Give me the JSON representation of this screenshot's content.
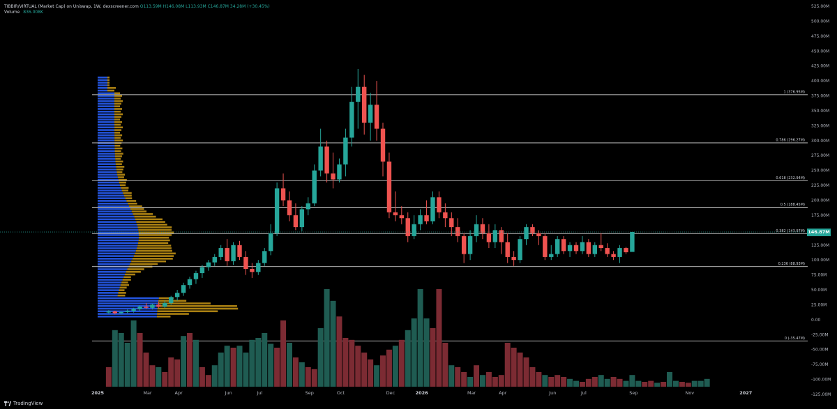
{
  "legend": {
    "symbol": "TIBBIR/VIRTUAL (Market Cap) on Uniswap, 1W, dexscreener.com",
    "open": "O113.59M",
    "high": "H146.08M",
    "low": "L113.93M",
    "close": "C146.87M",
    "change": "34.28M (+30.45%)"
  },
  "volume": {
    "label": "Volume",
    "value": "836.008K"
  },
  "brand": "TradingView",
  "last_price_label": "146.87M",
  "colors": {
    "background": "#000000",
    "up": "#26a69a",
    "down": "#ef5350",
    "vol_up": "#1f5c52",
    "vol_down": "#7c2b33",
    "vp_blue": "#2962ff",
    "vp_orange": "#d4a017",
    "fib_line": "#c7c7c7",
    "text": "#b2b5be"
  },
  "chart_data": {
    "type": "candlestick",
    "y_axis_ticks": [
      "525.00M",
      "500.00M",
      "475.00M",
      "450.00M",
      "425.00M",
      "400.00M",
      "375.00M",
      "350.00M",
      "325.00M",
      "300.00M",
      "275.00M",
      "250.00M",
      "225.00M",
      "200.00M",
      "175.00M",
      "150.00M",
      "125.00M",
      "100.00M",
      "75.00M",
      "50.00M",
      "25.00M",
      "0.00",
      "-25.00M",
      "-50.00M",
      "-75.00M",
      "-100.00M",
      "-125.00M"
    ],
    "y_axis_values": [
      525,
      500,
      475,
      450,
      425,
      400,
      375,
      350,
      325,
      300,
      275,
      250,
      225,
      200,
      175,
      150,
      125,
      100,
      75,
      50,
      25,
      0,
      -25,
      -50,
      -75,
      -100,
      -125
    ],
    "ylim": [
      -145,
      530
    ],
    "x_axis_ticks": [
      "2025",
      "Mar",
      "Apr",
      "Jun",
      "Jul",
      "Sep",
      "Oct",
      "Dec",
      "2026",
      "Mar",
      "Apr",
      "Jun",
      "Jul",
      "Sep",
      "Nov",
      "2027"
    ],
    "x_axis_weeks": [
      0,
      8,
      13,
      21,
      26,
      34,
      39,
      47,
      52,
      60,
      65,
      73,
      78,
      86,
      95,
      104
    ],
    "fib_levels": [
      {
        "label": "1 (376.95M)",
        "value": 376.95
      },
      {
        "label": "0.786 (296.27M)",
        "value": 296.27
      },
      {
        "label": "0.618 (232.94M)",
        "value": 232.94
      },
      {
        "label": "0.5 (188.45M)",
        "value": 188.45
      },
      {
        "label": "0.382 (143.97M)",
        "value": 143.97
      },
      {
        "label": "0.236 (88.93M)",
        "value": 88.93
      },
      {
        "label": "0 (-35.47M)",
        "value": -35.47
      }
    ],
    "candles": [
      [
        2,
        12,
        16,
        10,
        14
      ],
      [
        3,
        14,
        15,
        9,
        11
      ],
      [
        4,
        11,
        14,
        9,
        13
      ],
      [
        5,
        13,
        17,
        11,
        15
      ],
      [
        6,
        15,
        20,
        12,
        18
      ],
      [
        7,
        18,
        24,
        15,
        22
      ],
      [
        8,
        22,
        28,
        18,
        20
      ],
      [
        9,
        20,
        27,
        17,
        25
      ],
      [
        10,
        25,
        30,
        20,
        22
      ],
      [
        11,
        22,
        32,
        20,
        28
      ],
      [
        12,
        28,
        40,
        25,
        38
      ],
      [
        13,
        38,
        50,
        32,
        45
      ],
      [
        14,
        45,
        62,
        40,
        58
      ],
      [
        15,
        58,
        72,
        52,
        68
      ],
      [
        16,
        68,
        82,
        60,
        78
      ],
      [
        17,
        78,
        92,
        70,
        88
      ],
      [
        18,
        88,
        100,
        82,
        96
      ],
      [
        19,
        96,
        110,
        90,
        105
      ],
      [
        20,
        105,
        125,
        100,
        120
      ],
      [
        21,
        120,
        135,
        90,
        98
      ],
      [
        22,
        98,
        130,
        92,
        125
      ],
      [
        23,
        125,
        132,
        100,
        105
      ],
      [
        24,
        105,
        115,
        75,
        85
      ],
      [
        25,
        85,
        95,
        70,
        80
      ],
      [
        26,
        80,
        100,
        75,
        95
      ],
      [
        27,
        95,
        120,
        90,
        115
      ],
      [
        28,
        115,
        160,
        108,
        145
      ],
      [
        29,
        145,
        230,
        140,
        220
      ],
      [
        30,
        220,
        245,
        190,
        200
      ],
      [
        31,
        200,
        215,
        165,
        175
      ],
      [
        32,
        175,
        195,
        150,
        155
      ],
      [
        33,
        155,
        190,
        148,
        185
      ],
      [
        34,
        185,
        205,
        175,
        195
      ],
      [
        35,
        195,
        260,
        190,
        250
      ],
      [
        36,
        250,
        320,
        240,
        290
      ],
      [
        37,
        290,
        300,
        230,
        245
      ],
      [
        38,
        245,
        280,
        220,
        235
      ],
      [
        39,
        235,
        270,
        230,
        260
      ],
      [
        40,
        260,
        320,
        240,
        305
      ],
      [
        41,
        305,
        390,
        290,
        365
      ],
      [
        42,
        365,
        420,
        320,
        390
      ],
      [
        43,
        390,
        410,
        310,
        330
      ],
      [
        44,
        330,
        380,
        300,
        360
      ],
      [
        45,
        360,
        400,
        300,
        320
      ],
      [
        46,
        320,
        330,
        240,
        265
      ],
      [
        47,
        265,
        280,
        170,
        180
      ],
      [
        48,
        180,
        215,
        165,
        175
      ],
      [
        49,
        175,
        190,
        160,
        170
      ],
      [
        50,
        170,
        180,
        130,
        140
      ],
      [
        51,
        140,
        175,
        135,
        160
      ],
      [
        52,
        160,
        185,
        150,
        175
      ],
      [
        53,
        175,
        200,
        160,
        165
      ],
      [
        54,
        165,
        215,
        160,
        205
      ],
      [
        55,
        205,
        215,
        170,
        180
      ],
      [
        56,
        180,
        195,
        155,
        170
      ],
      [
        57,
        170,
        180,
        140,
        155
      ],
      [
        58,
        155,
        170,
        130,
        140
      ],
      [
        59,
        140,
        145,
        95,
        110
      ],
      [
        60,
        110,
        150,
        100,
        140
      ],
      [
        61,
        140,
        175,
        130,
        160
      ],
      [
        62,
        160,
        170,
        135,
        145
      ],
      [
        63,
        145,
        160,
        120,
        130
      ],
      [
        64,
        130,
        160,
        120,
        150
      ],
      [
        65,
        150,
        155,
        110,
        130
      ],
      [
        66,
        130,
        145,
        95,
        105
      ],
      [
        67,
        105,
        115,
        90,
        100
      ],
      [
        68,
        100,
        140,
        95,
        135
      ],
      [
        69,
        135,
        160,
        125,
        155
      ],
      [
        70,
        155,
        160,
        140,
        145
      ],
      [
        71,
        145,
        150,
        125,
        140
      ],
      [
        72,
        140,
        145,
        100,
        105
      ],
      [
        73,
        105,
        125,
        100,
        110
      ],
      [
        74,
        110,
        140,
        105,
        135
      ],
      [
        75,
        135,
        140,
        110,
        115
      ],
      [
        76,
        115,
        130,
        105,
        125
      ],
      [
        77,
        125,
        130,
        110,
        115
      ],
      [
        78,
        115,
        140,
        110,
        130
      ],
      [
        79,
        130,
        135,
        105,
        110
      ],
      [
        80,
        110,
        130,
        105,
        125
      ],
      [
        81,
        125,
        145,
        115,
        120
      ],
      [
        82,
        120,
        128,
        105,
        110
      ],
      [
        83,
        110,
        115,
        100,
        105
      ],
      [
        84,
        105,
        125,
        95,
        120
      ],
      [
        85,
        120,
        122,
        110,
        113
      ],
      [
        86,
        113.59,
        146.08,
        113.93,
        146.87
      ]
    ],
    "volume": [
      [
        2,
        false,
        20
      ],
      [
        3,
        true,
        58
      ],
      [
        4,
        true,
        55
      ],
      [
        5,
        true,
        45
      ],
      [
        6,
        true,
        68
      ],
      [
        7,
        false,
        55
      ],
      [
        8,
        false,
        35
      ],
      [
        9,
        false,
        22
      ],
      [
        10,
        true,
        20
      ],
      [
        11,
        false,
        15
      ],
      [
        12,
        false,
        30
      ],
      [
        13,
        false,
        28
      ],
      [
        14,
        true,
        52
      ],
      [
        15,
        false,
        55
      ],
      [
        16,
        true,
        48
      ],
      [
        17,
        false,
        20
      ],
      [
        18,
        false,
        12
      ],
      [
        19,
        true,
        22
      ],
      [
        20,
        true,
        35
      ],
      [
        21,
        true,
        42
      ],
      [
        22,
        false,
        40
      ],
      [
        23,
        true,
        42
      ],
      [
        24,
        true,
        35
      ],
      [
        25,
        true,
        48
      ],
      [
        26,
        true,
        50
      ],
      [
        27,
        true,
        55
      ],
      [
        28,
        true,
        44
      ],
      [
        29,
        false,
        40
      ],
      [
        30,
        false,
        68
      ],
      [
        31,
        true,
        45
      ],
      [
        32,
        false,
        30
      ],
      [
        33,
        true,
        25
      ],
      [
        34,
        false,
        20
      ],
      [
        35,
        false,
        18
      ],
      [
        36,
        true,
        60
      ],
      [
        37,
        true,
        100
      ],
      [
        38,
        true,
        88
      ],
      [
        39,
        false,
        72
      ],
      [
        40,
        false,
        50
      ],
      [
        41,
        false,
        48
      ],
      [
        42,
        false,
        42
      ],
      [
        43,
        false,
        35
      ],
      [
        44,
        false,
        28
      ],
      [
        45,
        true,
        22
      ],
      [
        46,
        false,
        32
      ],
      [
        47,
        false,
        38
      ],
      [
        48,
        true,
        42
      ],
      [
        49,
        false,
        48
      ],
      [
        50,
        true,
        58
      ],
      [
        51,
        true,
        70
      ],
      [
        52,
        true,
        100
      ],
      [
        53,
        true,
        70
      ],
      [
        54,
        false,
        60
      ],
      [
        55,
        false,
        100
      ],
      [
        56,
        false,
        45
      ],
      [
        57,
        true,
        22
      ],
      [
        58,
        false,
        20
      ],
      [
        59,
        false,
        15
      ],
      [
        60,
        true,
        10
      ],
      [
        61,
        false,
        22
      ],
      [
        62,
        true,
        12
      ],
      [
        63,
        false,
        15
      ],
      [
        64,
        false,
        10
      ],
      [
        65,
        false,
        12
      ],
      [
        66,
        false,
        45
      ],
      [
        67,
        false,
        40
      ],
      [
        68,
        false,
        35
      ],
      [
        69,
        false,
        30
      ],
      [
        70,
        false,
        20
      ],
      [
        71,
        false,
        15
      ],
      [
        72,
        true,
        12
      ],
      [
        73,
        false,
        10
      ],
      [
        74,
        false,
        12
      ],
      [
        75,
        false,
        10
      ],
      [
        76,
        true,
        8
      ],
      [
        77,
        true,
        6
      ],
      [
        78,
        false,
        5
      ],
      [
        79,
        false,
        8
      ],
      [
        80,
        false,
        10
      ],
      [
        81,
        true,
        12
      ],
      [
        82,
        true,
        8
      ],
      [
        83,
        false,
        10
      ],
      [
        84,
        false,
        8
      ],
      [
        85,
        true,
        6
      ],
      [
        86,
        true,
        12
      ],
      [
        87,
        true,
        6
      ],
      [
        88,
        false,
        5
      ],
      [
        89,
        false,
        6
      ],
      [
        90,
        true,
        4
      ],
      [
        91,
        false,
        5
      ],
      [
        92,
        true,
        15
      ],
      [
        93,
        true,
        6
      ],
      [
        94,
        false,
        5
      ],
      [
        95,
        false,
        4
      ],
      [
        96,
        true,
        6
      ],
      [
        97,
        true,
        6
      ],
      [
        98,
        true,
        8
      ]
    ],
    "volume_profile_note": "blue = up volume, orange = down volume, horizontal bars by price level"
  }
}
